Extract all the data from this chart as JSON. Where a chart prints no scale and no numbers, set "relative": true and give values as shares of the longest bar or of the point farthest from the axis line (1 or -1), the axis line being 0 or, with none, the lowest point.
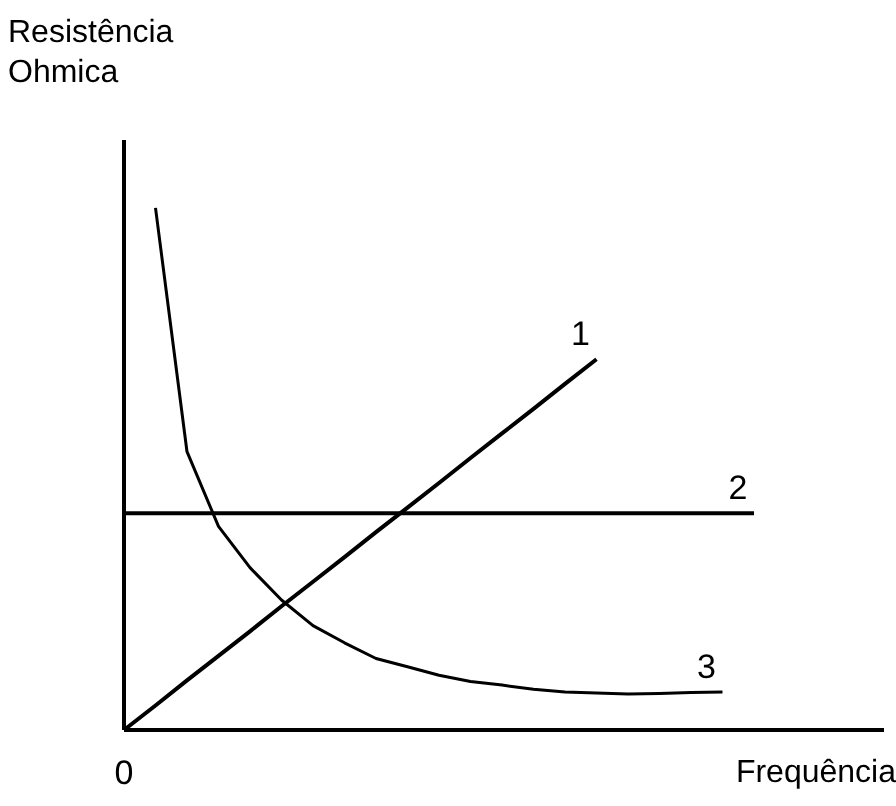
{
  "chart_data": {
    "type": "line",
    "relative": true,
    "xlabel": "Frequência",
    "ylabel": "Resistência\nOhmica",
    "categories": [
      null,
      null,
      null,
      null,
      null,
      null,
      null,
      null,
      null,
      null,
      null,
      null,
      null,
      null,
      null,
      null,
      null,
      null,
      null,
      null,
      null
    ],
    "line_style": "solid",
    "marker": "none",
    "annotations": [
      "0"
    ],
    "series": [
      {
        "name": "1",
        "color": "#000000",
        "values": [
          0,
          0.047,
          0.095,
          0.142,
          0.189,
          0.237,
          0.284,
          0.331,
          0.379,
          0.426,
          0.473,
          0.521,
          0.568,
          0.615,
          0.663,
          0.71,
          null,
          null,
          null,
          null,
          null
        ]
      },
      {
        "name": "2",
        "color": "#000000",
        "values": [
          0.415,
          0.415,
          0.415,
          0.415,
          0.415,
          0.415,
          0.415,
          0.415,
          0.415,
          0.415,
          0.415,
          0.415,
          0.415,
          0.415,
          0.415,
          0.415,
          0.415,
          0.415,
          0.415,
          0.415,
          0.415
        ]
      },
      {
        "name": "3",
        "color": "#000000",
        "values": [
          null,
          1,
          0.533,
          0.39,
          0.311,
          0.249,
          0.2,
          0.167,
          0.137,
          0.121,
          0.105,
          0.093,
          0.086,
          0.078,
          0.073,
          0.071,
          0.069,
          0.07,
          0.072,
          0.073,
          null
        ]
      }
    ]
  }
}
